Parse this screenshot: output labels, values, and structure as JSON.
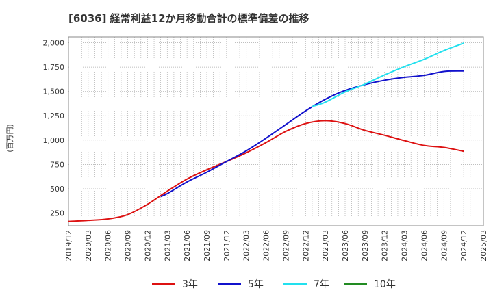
{
  "chart_data": {
    "type": "line",
    "title": "[6036]  経常利益12か月移動合計の標準偏差の推移",
    "ylabel": "(百万円)",
    "xlabel": "",
    "ylim": [
      120,
      2060
    ],
    "y_ticks": [
      250,
      500,
      750,
      1000,
      1250,
      1500,
      1750,
      2000
    ],
    "y_tick_labels": [
      "250",
      "500",
      "750",
      "1,000",
      "1,250",
      "1,500",
      "1,750",
      "2,000"
    ],
    "x_ticks": [
      "2019/12",
      "2020/03",
      "2020/06",
      "2020/09",
      "2020/12",
      "2021/03",
      "2021/06",
      "2021/09",
      "2021/12",
      "2022/03",
      "2022/06",
      "2022/09",
      "2022/12",
      "2023/03",
      "2023/06",
      "2023/09",
      "2023/12",
      "2024/03",
      "2024/06",
      "2024/09",
      "2024/12",
      "2025/03"
    ],
    "grid": true,
    "legend_position": "bottom",
    "series": [
      {
        "name": "3年",
        "color": "#dd1111",
        "points": [
          [
            "2019/12",
            165
          ],
          [
            "2020/03",
            175
          ],
          [
            "2020/06",
            190
          ],
          [
            "2020/09",
            235
          ],
          [
            "2020/12",
            340
          ],
          [
            "2021/03",
            475
          ],
          [
            "2021/06",
            600
          ],
          [
            "2021/09",
            695
          ],
          [
            "2021/12",
            780
          ],
          [
            "2022/03",
            870
          ],
          [
            "2022/06",
            975
          ],
          [
            "2022/09",
            1090
          ],
          [
            "2022/12",
            1170
          ],
          [
            "2023/03",
            1200
          ],
          [
            "2023/06",
            1170
          ],
          [
            "2023/09",
            1100
          ],
          [
            "2023/12",
            1050
          ],
          [
            "2024/03",
            995
          ],
          [
            "2024/06",
            945
          ],
          [
            "2024/09",
            925
          ],
          [
            "2024/12",
            885
          ]
        ]
      },
      {
        "name": "5年",
        "color": "#1111cc",
        "points": [
          [
            "2021/02",
            420
          ],
          [
            "2021/03",
            450
          ],
          [
            "2021/06",
            570
          ],
          [
            "2021/09",
            670
          ],
          [
            "2021/12",
            780
          ],
          [
            "2022/03",
            890
          ],
          [
            "2022/06",
            1020
          ],
          [
            "2022/09",
            1160
          ],
          [
            "2022/12",
            1300
          ],
          [
            "2023/03",
            1420
          ],
          [
            "2023/06",
            1510
          ],
          [
            "2023/09",
            1570
          ],
          [
            "2023/12",
            1615
          ],
          [
            "2024/03",
            1645
          ],
          [
            "2024/06",
            1665
          ],
          [
            "2024/09",
            1705
          ],
          [
            "2024/12",
            1710
          ]
        ]
      },
      {
        "name": "7年",
        "color": "#22e0ee",
        "points": [
          [
            "2023/01",
            1345
          ],
          [
            "2023/03",
            1390
          ],
          [
            "2023/06",
            1495
          ],
          [
            "2023/09",
            1575
          ],
          [
            "2023/12",
            1670
          ],
          [
            "2024/03",
            1755
          ],
          [
            "2024/06",
            1830
          ],
          [
            "2024/09",
            1920
          ],
          [
            "2024/12",
            1995
          ]
        ]
      },
      {
        "name": "10年",
        "color": "#228b22",
        "points": []
      }
    ]
  }
}
